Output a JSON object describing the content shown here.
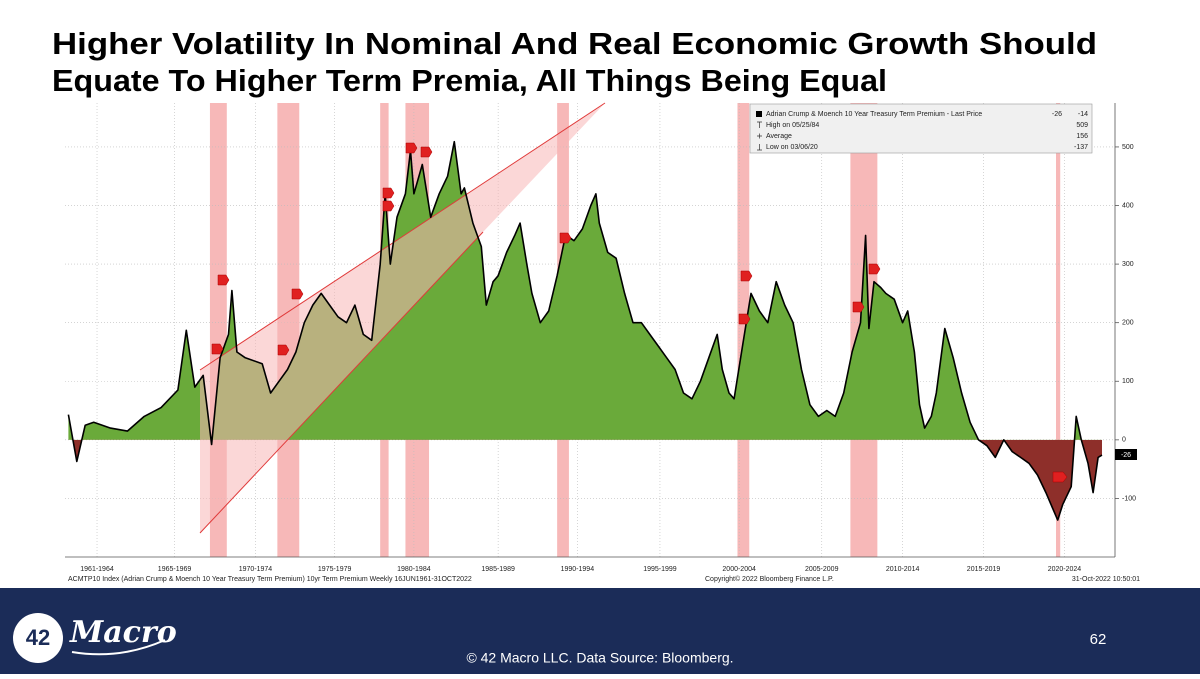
{
  "title_lines": [
    "Higher Volatility In Nominal And Real Economic Growth Should",
    "Equate To Higher Term Premia, All Things Being Equal"
  ],
  "chart_data": {
    "type": "area",
    "x": [
      1961.5,
      1962,
      1962.5,
      1963,
      1964,
      1965,
      1966,
      1967,
      1968,
      1968.5,
      1969,
      1969.5,
      1970,
      1970.5,
      1971,
      1971.2,
      1971.5,
      1972,
      1973,
      1973.5,
      1974,
      1974.5,
      1975,
      1975.5,
      1976,
      1976.5,
      1977,
      1977.5,
      1978,
      1978.5,
      1979,
      1979.5,
      1980,
      1980.3,
      1980.6,
      1981,
      1981.5,
      1981.8,
      1982,
      1982.5,
      1983,
      1983.5,
      1984,
      1984.4,
      1984.8,
      1985,
      1985.5,
      1986,
      1986.3,
      1986.7,
      1987,
      1987.5,
      1988,
      1988.3,
      1988.7,
      1989,
      1989.5,
      1990,
      1990.5,
      1991,
      1991.5,
      1992,
      1992.5,
      1992.8,
      1993,
      1993.5,
      1994,
      1994.5,
      1995,
      1995.5,
      1996,
      1996.5,
      1997,
      1997.5,
      1998,
      1998.5,
      1999,
      1999.5,
      2000,
      2000.3,
      2000.7,
      2001,
      2001.5,
      2002,
      2002.5,
      2003,
      2003.5,
      2004,
      2004.5,
      2005,
      2005.5,
      2006,
      2006.5,
      2007,
      2007.5,
      2008,
      2008.5,
      2008.8,
      2009,
      2009.3,
      2009.7,
      2010,
      2010.5,
      2011,
      2011.3,
      2011.7,
      2012,
      2012.3,
      2012.7,
      2013,
      2013.5,
      2014,
      2014.5,
      2015,
      2015.5,
      2016,
      2016.5,
      2017,
      2017.5,
      2018,
      2018.5,
      2019,
      2019.5,
      2020.2,
      2020.5,
      2021,
      2021.3,
      2021.6,
      2022,
      2022.3,
      2022.6,
      2022.83
    ],
    "series": [
      {
        "name": "Adrian Crump & Moench 10 Year Treasury Term Premium - Last Price",
        "color": "#000000",
        "fill_positive": "#6aaa3a",
        "fill_negative": "#8e2f2a",
        "values": [
          43,
          -37,
          25,
          30,
          20,
          15,
          40,
          55,
          85,
          187,
          90,
          110,
          -8,
          140,
          180,
          255,
          150,
          140,
          130,
          80,
          100,
          120,
          150,
          200,
          230,
          250,
          230,
          210,
          200,
          230,
          180,
          170,
          300,
          420,
          300,
          380,
          420,
          494,
          420,
          470,
          380,
          420,
          450,
          509,
          420,
          430,
          370,
          330,
          230,
          270,
          280,
          320,
          350,
          370,
          300,
          250,
          200,
          220,
          280,
          350,
          340,
          360,
          400,
          420,
          370,
          320,
          310,
          250,
          200,
          200,
          180,
          160,
          140,
          120,
          80,
          70,
          100,
          140,
          180,
          120,
          80,
          70,
          160,
          250,
          220,
          200,
          270,
          230,
          200,
          120,
          60,
          40,
          50,
          40,
          80,
          150,
          200,
          349,
          190,
          270,
          260,
          250,
          240,
          200,
          220,
          150,
          60,
          20,
          40,
          80,
          190,
          140,
          80,
          30,
          0,
          -10,
          -30,
          0,
          -20,
          -30,
          -40,
          -60,
          -90,
          -137,
          -110,
          -80,
          40,
          0,
          -40,
          -90,
          -30,
          -26
        ]
      }
    ],
    "last_price": -26,
    "last_change": -14,
    "stats": [
      {
        "label": "High on 05/25/84",
        "value": 509
      },
      {
        "label": "Average",
        "value": 156
      },
      {
        "label": "Low on 03/06/20",
        "value": -137
      }
    ],
    "legend_corner": "top-right",
    "xlim": [
      1961.3,
      2023.6
    ],
    "ylim": [
      -200,
      575
    ],
    "yticks": [
      -100,
      0,
      100,
      200,
      300,
      400,
      500
    ],
    "xticks": [
      {
        "value": 1963.2,
        "label": "1961-1964"
      },
      {
        "value": 1967.8,
        "label": "1965-1969"
      },
      {
        "value": 1972.6,
        "label": "1970-1974"
      },
      {
        "value": 1977.3,
        "label": "1975-1979"
      },
      {
        "value": 1982.0,
        "label": "1980-1984"
      },
      {
        "value": 1987.0,
        "label": "1985-1989"
      },
      {
        "value": 1991.7,
        "label": "1990-1994"
      },
      {
        "value": 1996.6,
        "label": "1995-1999"
      },
      {
        "value": 2001.3,
        "label": "2000-2004"
      },
      {
        "value": 2006.2,
        "label": "2005-2009"
      },
      {
        "value": 2011.0,
        "label": "2010-2014"
      },
      {
        "value": 2015.8,
        "label": "2015-2019"
      },
      {
        "value": 2020.6,
        "label": "2020-2024"
      }
    ],
    "grid": true,
    "recessions": [
      [
        1969.9,
        1970.9
      ],
      [
        1973.9,
        1975.2
      ],
      [
        1980.0,
        1980.5
      ],
      [
        1981.5,
        1982.9
      ],
      [
        1990.5,
        1991.2
      ],
      [
        2001.2,
        2001.9
      ],
      [
        2007.9,
        2009.5
      ],
      [
        2020.1,
        2020.35
      ]
    ],
    "recession_color": "#f4a0a0",
    "source_note": "ACMTP10 Index (Adrian Crump & Moench 10 Year Treasury Term Premium) 10yr Term Premium  Weekly 16JUN1961-31OCT2022",
    "copyright": "Copyright© 2022 Bloomberg Finance L.P.",
    "timestamp": "31-Oct-2022 10:50:01"
  },
  "footer": {
    "logo_number": "42",
    "logo_text": "Macro",
    "credit": "© 42 Macro LLC. Data Source: Bloomberg.",
    "page_number": 62
  }
}
